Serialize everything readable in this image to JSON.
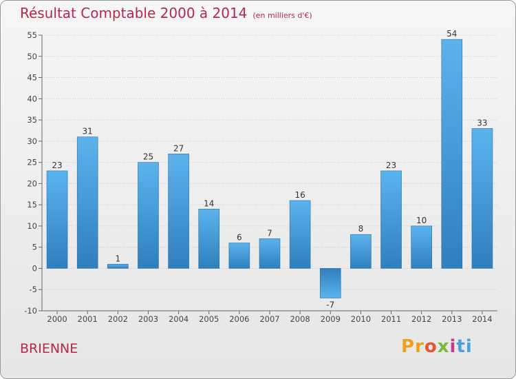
{
  "title": "Résultat Comptable 2000 à 2014",
  "subtitle": "(en milliers d'€)",
  "place": "BRIENNE",
  "logo": {
    "p1": "Pr",
    "p2": "o",
    "p3": "x",
    "p4": "i",
    "p5": "ti"
  },
  "colors": {
    "bar_top": "#5cb3ec",
    "bar_bottom": "#2f7fbd",
    "title": "#b5284e"
  },
  "chart_data": {
    "type": "bar",
    "title": "Résultat Comptable 2000 à 2014",
    "xlabel": "",
    "ylabel": "",
    "categories": [
      "2000",
      "2001",
      "2002",
      "2003",
      "2004",
      "2005",
      "2006",
      "2007",
      "2008",
      "2009",
      "2010",
      "2011",
      "2012",
      "2013",
      "2014"
    ],
    "values": [
      23,
      31,
      1,
      25,
      27,
      14,
      6,
      7,
      16,
      -7,
      8,
      23,
      10,
      54,
      33
    ],
    "ylim": [
      -10,
      55
    ],
    "yticks": [
      -10,
      -5,
      0,
      5,
      10,
      15,
      20,
      25,
      30,
      35,
      40,
      45,
      50,
      55
    ],
    "grid": true
  }
}
